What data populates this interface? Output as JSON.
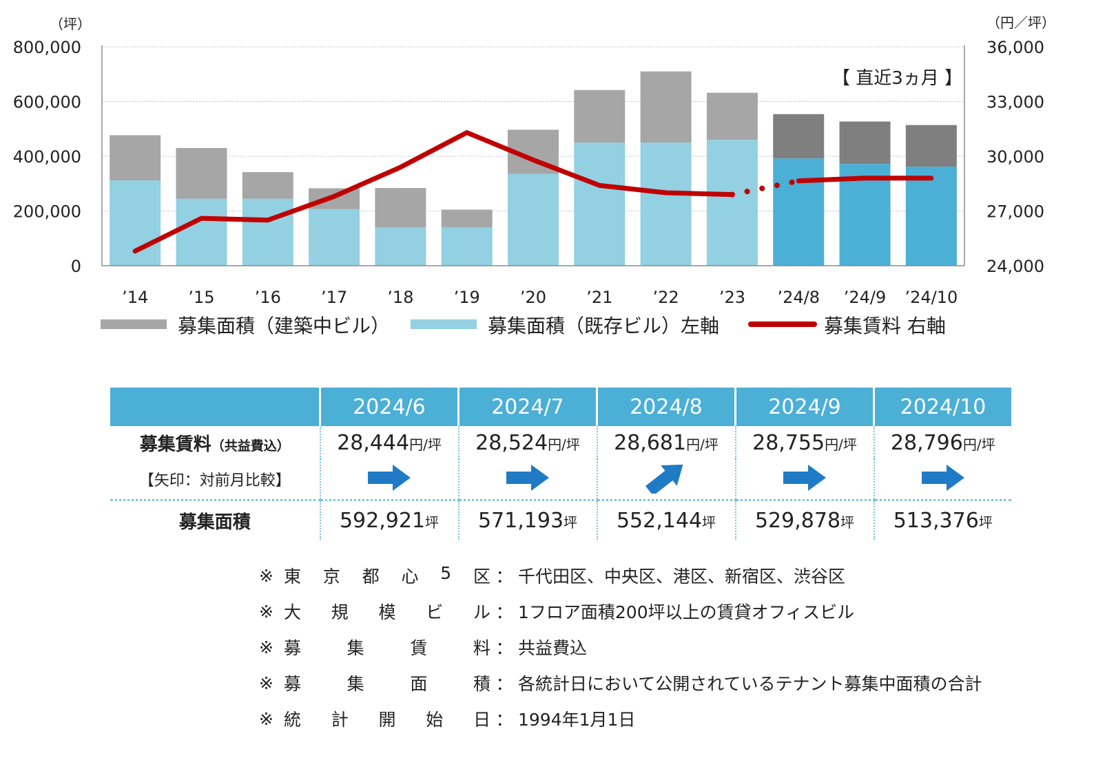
{
  "chart_data": {
    "type": "bar+line",
    "left_unit": "（坪）",
    "right_unit": "（円／坪）",
    "categories": [
      "’14",
      "’15",
      "’16",
      "’17",
      "’18",
      "’19",
      "’20",
      "’21",
      "’22",
      "’23",
      "’24/8",
      "’24/9",
      "’24/10"
    ],
    "left_axis": {
      "ylim": [
        0,
        800000
      ],
      "ticks": [
        "0",
        "200,000",
        "400,000",
        "600,000",
        "800,000"
      ],
      "tick_values": [
        0,
        200000,
        400000,
        600000,
        800000
      ]
    },
    "right_axis": {
      "ylim": [
        24000,
        36000
      ],
      "ticks": [
        "24,000",
        "27,000",
        "30,000",
        "33,000",
        "36,000"
      ],
      "tick_values": [
        24000,
        27000,
        30000,
        33000,
        36000
      ]
    },
    "series": [
      {
        "name": "募集面積（既存ビル）左軸",
        "type": "bar",
        "stack": "area",
        "values": [
          312000,
          245000,
          245000,
          207000,
          140000,
          140000,
          335000,
          450000,
          450000,
          460000,
          392000,
          372000,
          362000
        ]
      },
      {
        "name": "募集面積（建築中ビル）",
        "type": "bar",
        "stack": "area",
        "values": [
          165000,
          185000,
          97000,
          76000,
          144000,
          65000,
          162000,
          192000,
          260000,
          172000,
          162000,
          155000,
          152000
        ]
      },
      {
        "name": "募集賃料 右軸",
        "type": "line",
        "values": [
          24800,
          26600,
          26500,
          27800,
          29400,
          31300,
          29800,
          28400,
          28000,
          27900,
          28650,
          28800,
          28800
        ],
        "dotted_between": [
          9,
          10
        ]
      }
    ],
    "annotation": "【 直近3ヵ月 】",
    "colors": {
      "construction": "#a6a6a6",
      "construction_recent": "#7f7f7f",
      "existing": "#92d0e2",
      "existing_recent": "#4bafd6",
      "line": "#c00000",
      "grid": "#bfbfbf"
    }
  },
  "legend": {
    "construction": "募集面積（建築中ビル）",
    "existing": "募集面積（既存ビル）左軸",
    "rent": "募集賃料 右軸"
  },
  "table": {
    "months": [
      "2024/6",
      "2024/7",
      "2024/8",
      "2024/9",
      "2024/10"
    ],
    "rent_label": "募集賃料",
    "rent_label_note": "（共益費込）",
    "arrow_label": "【矢印：対前月比較】",
    "rent_values": [
      "28,444",
      "28,524",
      "28,681",
      "28,755",
      "28,796"
    ],
    "rent_unit": "円/坪",
    "arrows": [
      "flat",
      "flat",
      "up",
      "flat",
      "flat"
    ],
    "area_label": "募集面積",
    "area_values": [
      "592,921",
      "571,193",
      "552,144",
      "529,878",
      "513,376"
    ],
    "area_unit": "坪"
  },
  "notes": [
    {
      "key": [
        "東",
        "京",
        "都",
        "心",
        "5",
        "区"
      ],
      "value": "千代田区、中央区、港区、新宿区、渋谷区"
    },
    {
      "key": [
        "大",
        "規",
        "模",
        "ビ",
        "ル"
      ],
      "value": "1フロア面積200坪以上の賃貸オフィスビル"
    },
    {
      "key": [
        "募",
        "集",
        "賃",
        "料"
      ],
      "value": "共益費込"
    },
    {
      "key": [
        "募",
        "集",
        "面",
        "積"
      ],
      "value": "各統計日において公開されているテナント募集中面積の合計"
    },
    {
      "key": [
        "統",
        "計",
        "開",
        "始",
        "日"
      ],
      "value": "1994年1月1日"
    }
  ],
  "note_mark": "※",
  "note_colon": "："
}
